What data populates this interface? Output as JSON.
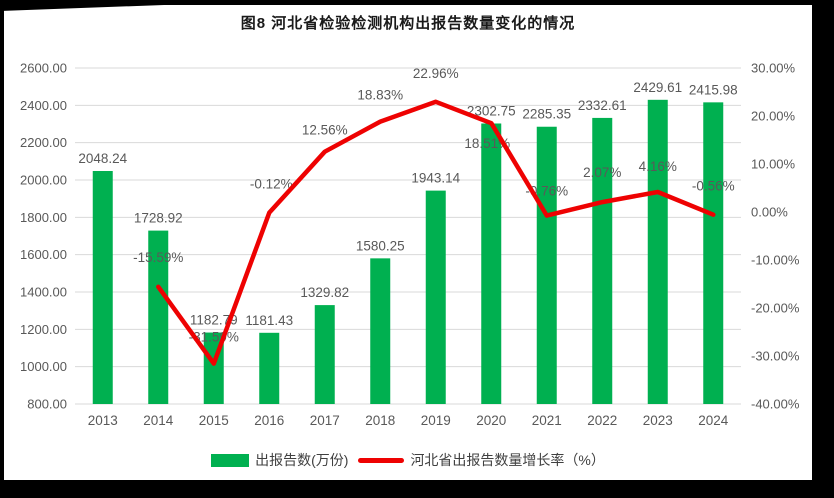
{
  "page": {
    "background_color": "#000000",
    "panel_color": "#ffffff"
  },
  "chart_data": {
    "type": "bar+line",
    "title": "图8 河北省检验检测机构出报告数量变化的情况",
    "categories": [
      "2013",
      "2014",
      "2015",
      "2016",
      "2017",
      "2018",
      "2019",
      "2020",
      "2021",
      "2022",
      "2023",
      "2024"
    ],
    "series": [
      {
        "name": "出报告数(万份)",
        "type": "bar",
        "axis": "left",
        "color": "#00B050",
        "values": [
          2048.24,
          1728.92,
          1182.79,
          1181.43,
          1329.82,
          1580.25,
          1943.14,
          2302.75,
          2285.35,
          2332.61,
          2429.61,
          2415.98
        ],
        "labels": [
          "2048.24",
          "1728.92",
          "1182.79",
          "1181.43",
          "1329.82",
          "1580.25",
          "1943.14",
          "2302.75",
          "2285.35",
          "2332.61",
          "2429.61",
          "2415.98"
        ]
      },
      {
        "name": "河北省出报告数量增长率（%）",
        "type": "line",
        "axis": "right",
        "color": "#EE0202",
        "values": [
          null,
          -15.59,
          -31.59,
          -0.12,
          12.56,
          18.83,
          22.96,
          18.51,
          -0.76,
          2.07,
          4.16,
          -0.56
        ],
        "labels": [
          null,
          "-15.59%",
          "-31.59%",
          "-0.12%",
          "12.56%",
          "18.83%",
          "22.96%",
          "18.51%",
          "-0.76%",
          "2.07%",
          "4.16%",
          "-0.56%"
        ],
        "label_dx": [
          null,
          0,
          0,
          2,
          0,
          0,
          0,
          -4,
          0,
          0,
          0,
          0
        ],
        "label_dy": [
          null,
          -25,
          -22,
          -24,
          -17,
          -22,
          -24,
          25,
          -20,
          -25,
          -21,
          -24
        ]
      }
    ],
    "left_axis": {
      "min": 800,
      "max": 2600,
      "step": 200,
      "tick_labels": [
        "800.00",
        "1000.00",
        "1200.00",
        "1400.00",
        "1600.00",
        "1800.00",
        "2000.00",
        "2200.00",
        "2400.00",
        "2600.00"
      ]
    },
    "right_axis": {
      "min": -40,
      "max": 30,
      "step": 10,
      "tick_labels": [
        "-40.00%",
        "-30.00%",
        "-20.00%",
        "-10.00%",
        "0.00%",
        "10.00%",
        "20.00%",
        "30.00%"
      ]
    },
    "grid": true,
    "gridline_color": "#D9D9D9",
    "tick_label_color": "#595959",
    "data_label_color": "#595959",
    "legend_position": "bottom"
  }
}
